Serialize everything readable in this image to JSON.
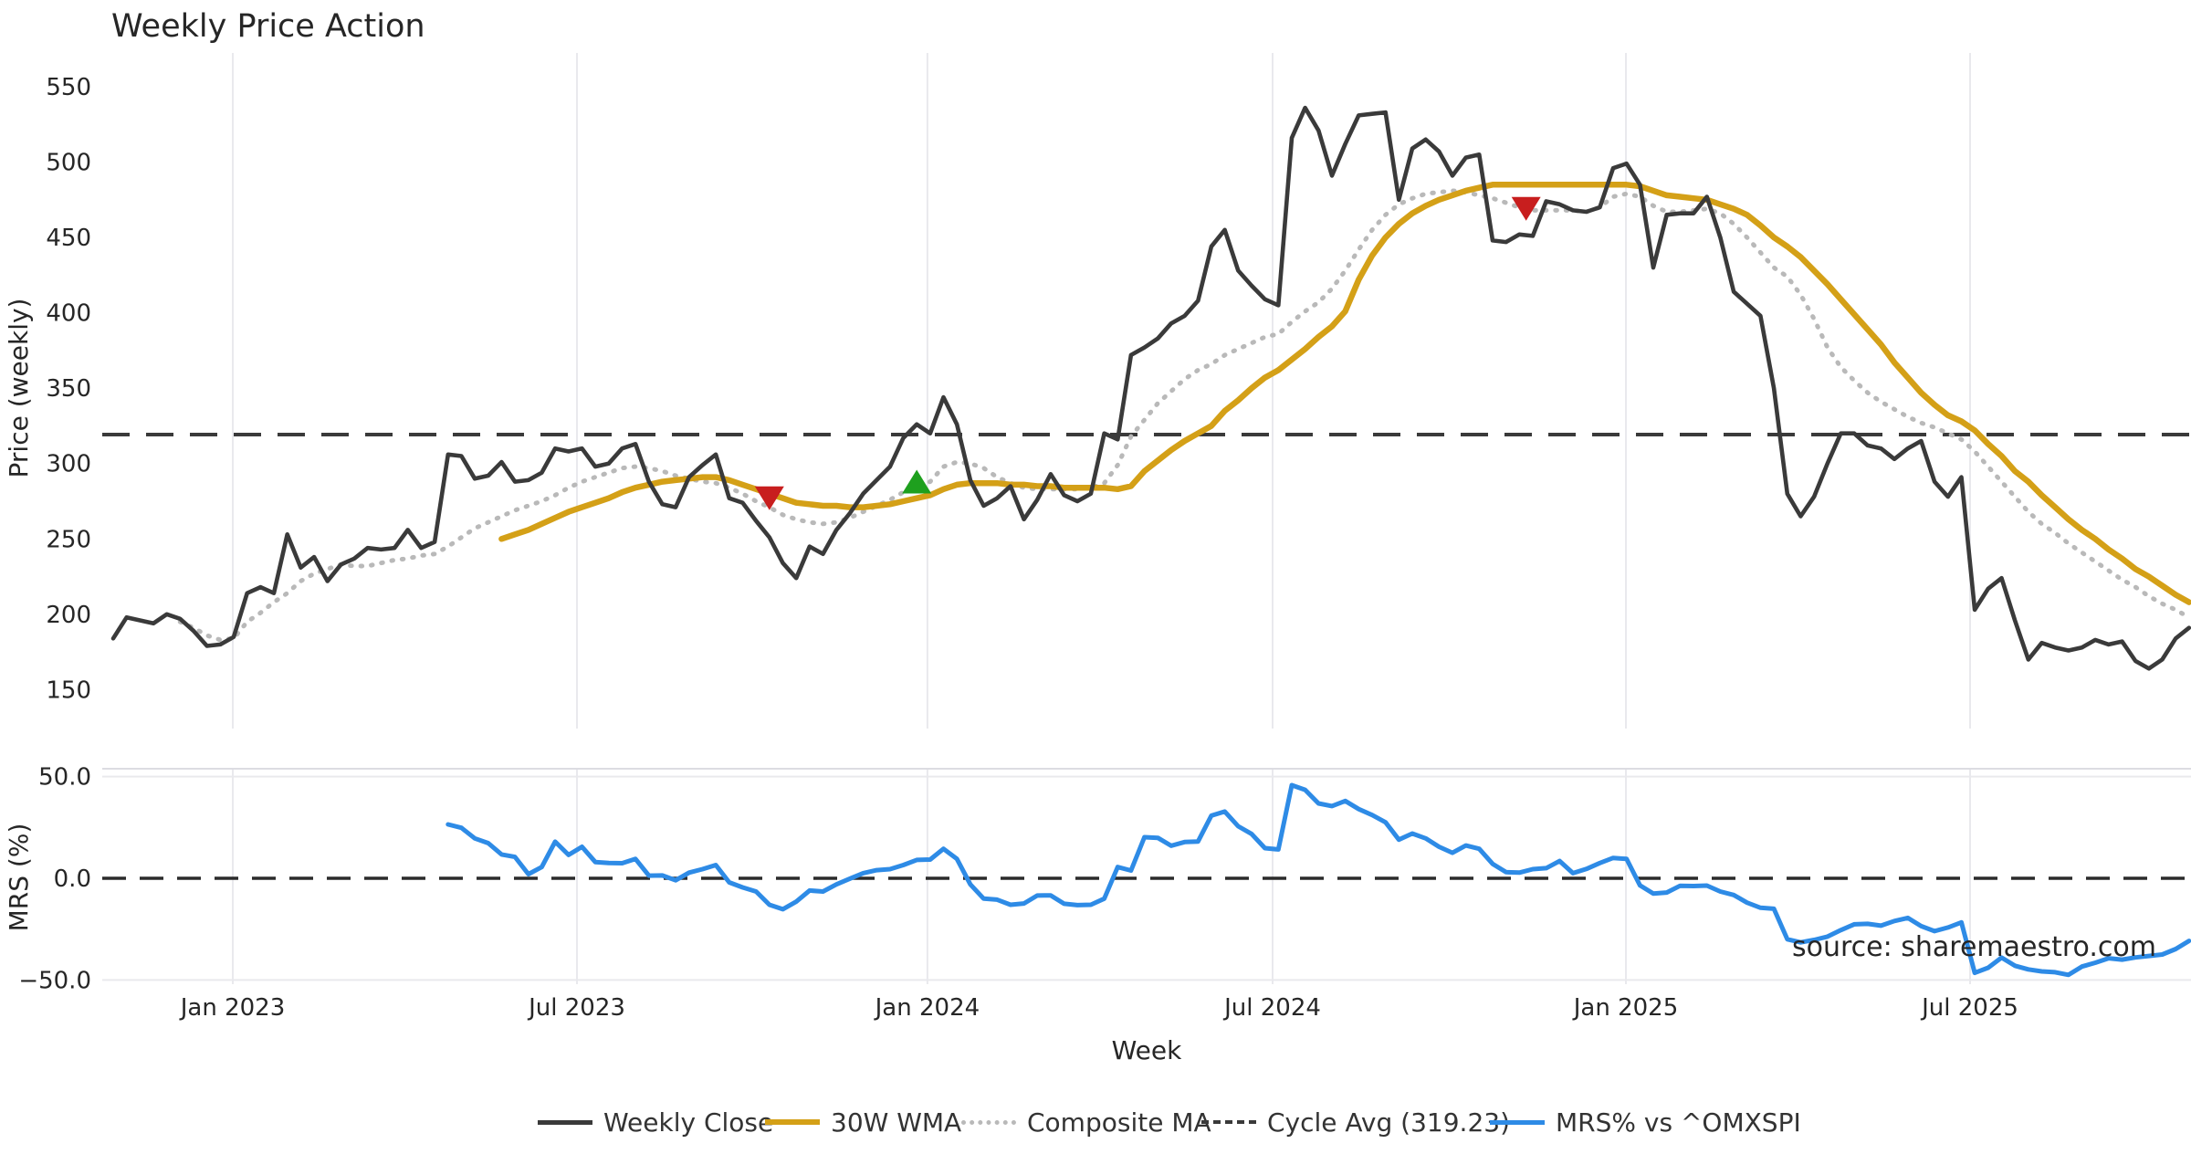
{
  "title": "Weekly Price Action",
  "watermark": "source: sharemaestro.com",
  "price_axis": {
    "label": "Price (weekly)",
    "ticks": [
      "550",
      "500",
      "450",
      "400",
      "350",
      "300",
      "250",
      "200",
      "150"
    ],
    "tick_values": [
      550,
      500,
      450,
      400,
      350,
      300,
      250,
      200,
      150
    ]
  },
  "mrs_axis": {
    "label": "MRS (%)",
    "ticks": [
      {
        "label": "50.0",
        "value": 50
      },
      {
        "label": "0.0",
        "value": 0
      },
      {
        "label": "−50.0",
        "value": -50
      }
    ]
  },
  "x_axis": {
    "label": "Week",
    "ticks": [
      {
        "label": "Jan 2023",
        "week": 8.93
      },
      {
        "label": "Jul 2023",
        "week": 34.63
      },
      {
        "label": "Jan 2024",
        "week": 60.8
      },
      {
        "label": "Jul 2024",
        "week": 86.57
      },
      {
        "label": "Jan 2025",
        "week": 112.95
      },
      {
        "label": "Jul 2025",
        "week": 138.65
      }
    ]
  },
  "legend": {
    "items": [
      {
        "label": "Weekly Close",
        "series": "weekly_close"
      },
      {
        "label": "30W WMA",
        "series": "wma_30w"
      },
      {
        "label": "Composite MA",
        "series": "composite_ma"
      },
      {
        "label": "Cycle Avg (319.23)",
        "series": "cycle_avg"
      },
      {
        "label": "MRS% vs ^OMXSPI",
        "series": "mrs"
      }
    ]
  },
  "chart_data": {
    "type": "line",
    "title": "Weekly Price Action",
    "x": {
      "start_date": "2022-10-31",
      "freq": "weekly",
      "n_weeks": 156
    },
    "panels": [
      {
        "name": "price",
        "ylabel": "Price (weekly)",
        "ylim": [
          134,
          563
        ],
        "grid": "vertical-only",
        "series": [
          {
            "name": "Weekly Close",
            "color": "#3a3a3a",
            "style": "solid",
            "start_week": 0,
            "values": [
              184,
              198,
              196,
              194,
              200,
              197,
              189,
              179,
              180,
              185,
              214,
              218,
              214,
              253,
              231,
              238,
              222,
              233,
              237,
              244,
              243,
              244,
              256,
              244,
              248,
              306,
              305,
              290,
              292,
              301,
              288,
              289,
              294,
              310,
              308,
              310,
              298,
              300,
              310,
              313,
              288,
              273,
              271,
              291,
              299,
              306,
              277,
              274,
              262,
              251,
              234,
              224,
              245,
              240,
              256,
              267,
              280,
              289,
              298,
              317,
              326,
              320,
              344,
              326,
              289,
              272,
              277,
              285,
              263,
              276,
              293,
              279,
              275,
              280,
              320,
              316,
              372,
              377,
              383,
              393,
              398,
              408,
              444,
              455,
              428,
              418,
              409,
              405,
              516,
              536,
              521,
              491,
              512,
              531,
              532,
              533,
              475,
              509,
              515,
              507,
              491,
              503,
              505,
              448,
              447,
              452,
              451,
              474,
              472,
              468,
              467,
              470,
              496,
              499,
              485,
              430,
              465,
              466,
              466,
              477,
              450,
              414,
              406,
              398,
              350,
              280,
              265,
              278,
              300,
              320,
              320,
              312,
              310,
              303,
              310,
              315,
              288,
              278,
              291,
              203,
              217,
              224,
              196,
              170,
              181,
              178,
              176,
              178,
              183,
              180,
              182,
              169,
              164,
              170,
              184,
              191
            ]
          },
          {
            "name": "30W WMA",
            "color": "#d4a017",
            "style": "solid",
            "start_week": 29,
            "values": [
              250,
              253,
              256,
              260,
              264,
              268,
              271,
              274,
              277,
              281,
              284,
              286,
              288,
              289,
              290,
              291,
              291,
              289,
              286,
              283,
              280,
              277,
              274,
              273,
              272,
              272,
              271,
              271,
              272,
              273,
              275,
              277,
              279,
              283,
              286,
              287,
              287,
              287,
              286,
              286,
              285,
              285,
              284,
              284,
              284,
              284,
              283,
              285,
              295,
              302,
              309,
              315,
              320,
              325,
              335,
              342,
              350,
              357,
              362,
              369,
              376,
              384,
              391,
              401,
              422,
              438,
              450,
              459,
              466,
              471,
              475,
              478,
              481,
              483,
              485,
              485,
              485,
              485,
              485,
              485,
              485,
              485,
              485,
              485,
              485,
              484,
              481,
              478,
              477,
              476,
              475,
              472,
              469,
              465,
              458,
              450,
              444,
              437,
              428,
              419,
              409,
              399,
              389,
              379,
              367,
              357,
              347,
              339,
              332,
              328,
              322,
              313,
              305,
              295,
              288,
              279,
              271,
              263,
              256,
              250,
              243,
              237,
              230,
              225,
              219,
              213,
              208
            ]
          },
          {
            "name": "Composite MA",
            "color": "#b9b9b9",
            "style": "dotted",
            "start_week": 5,
            "values": [
              195,
              191,
              186,
              183,
              184,
              195,
              201,
              208,
              214,
              222,
              227,
              230,
              233,
              232,
              232,
              234,
              236,
              237,
              239,
              240,
              245,
              251,
              257,
              261,
              265,
              269,
              272,
              275,
              279,
              284,
              288,
              291,
              294,
              297,
              298,
              297,
              295,
              292,
              290,
              288,
              287,
              284,
              280,
              275,
              271,
              266,
              263,
              261,
              260,
              261,
              264,
              268,
              272,
              276,
              281,
              285,
              288,
              298,
              301,
              300,
              297,
              291,
              287,
              284,
              283,
              283,
              283,
              283,
              284,
              287,
              299,
              318,
              329,
              340,
              348,
              356,
              362,
              366,
              372,
              376,
              380,
              384,
              386,
              394,
              401,
              407,
              416,
              428,
              442,
              455,
              465,
              472,
              476,
              479,
              480,
              481,
              480,
              478,
              476,
              473,
              470,
              468,
              468,
              468,
              468,
              467,
              470,
              477,
              479,
              477,
              471,
              467,
              467,
              468,
              469,
              466,
              459,
              450,
              440,
              430,
              424,
              412,
              396,
              377,
              364,
              355,
              347,
              341,
              336,
              331,
              327,
              324,
              320,
              316,
              308,
              298,
              288,
              278,
              268,
              260,
              254,
              247,
              241,
              235,
              229,
              223,
              218,
              212,
              207,
              203,
              198
            ]
          },
          {
            "name": "Cycle Avg",
            "color": "#3a3a3a",
            "style": "dashed",
            "constant": 319.23
          }
        ],
        "markers": [
          {
            "week": 49,
            "value": 277,
            "shape": "triangle-down",
            "color": "#c81e1e"
          },
          {
            "week": 60,
            "value": 288,
            "shape": "triangle-up",
            "color": "#1ea01e"
          },
          {
            "week": 105.5,
            "value": 469,
            "shape": "triangle-down",
            "color": "#c81e1e"
          }
        ]
      },
      {
        "name": "mrs",
        "ylabel": "MRS (%)",
        "ylim": [
          -59,
          54
        ],
        "grid": "horizontal-and-vertical",
        "series": [
          {
            "name": "MRS% vs ^OMXSPI",
            "color": "#2e8be6",
            "style": "solid",
            "start_week": 25,
            "values": [
              26.5,
              24.8,
              19.6,
              17.3,
              11.7,
              10.5,
              2.0,
              5.5,
              18.0,
              11.5,
              15.5,
              8.0,
              7.5,
              7.4,
              9.5,
              1.3,
              1.4,
              -1.0,
              2.8,
              4.5,
              6.5,
              -2.0,
              -4.5,
              -6.5,
              -13.0,
              -15.2,
              -11.5,
              -6.0,
              -6.5,
              -3.0,
              -0.2,
              2.5,
              4.0,
              4.5,
              6.5,
              9.0,
              9.2,
              14.5,
              9.5,
              -3.0,
              -10.0,
              -10.5,
              -13.0,
              -12.4,
              -8.5,
              -8.4,
              -12.5,
              -13.2,
              -13.0,
              -10.0,
              5.5,
              3.8,
              20.2,
              19.9,
              16.0,
              17.8,
              18.1,
              30.8,
              32.8,
              25.6,
              21.8,
              14.8,
              14.2,
              45.8,
              43.5,
              36.8,
              35.5,
              38.0,
              34.0,
              31.1,
              27.5,
              19.0,
              22.0,
              19.6,
              15.5,
              12.5,
              16.1,
              14.5,
              7.1,
              3.0,
              2.8,
              4.5,
              5.0,
              8.5,
              2.5,
              4.6,
              7.5,
              10.0,
              9.5,
              -3.5,
              -7.5,
              -7.0,
              -3.7,
              -3.8,
              -3.6,
              -6.5,
              -8.2,
              -12.0,
              -14.5,
              -15.0,
              -30.0,
              -31.5,
              -30.3,
              -28.7,
              -25.5,
              -22.6,
              -22.4,
              -23.3,
              -21.0,
              -19.5,
              -23.5,
              -26.0,
              -24.2,
              -21.7,
              -46.5,
              -44.0,
              -39.0,
              -43.0,
              -44.8,
              -45.8,
              -46.2,
              -47.5,
              -43.4,
              -41.5,
              -39.3,
              -40.0,
              -38.9,
              -38.2,
              -37.5,
              -34.8,
              -30.8
            ]
          },
          {
            "name": "Zero line",
            "color": "#2b2b2b",
            "style": "dashed",
            "constant": 0
          }
        ]
      }
    ]
  }
}
